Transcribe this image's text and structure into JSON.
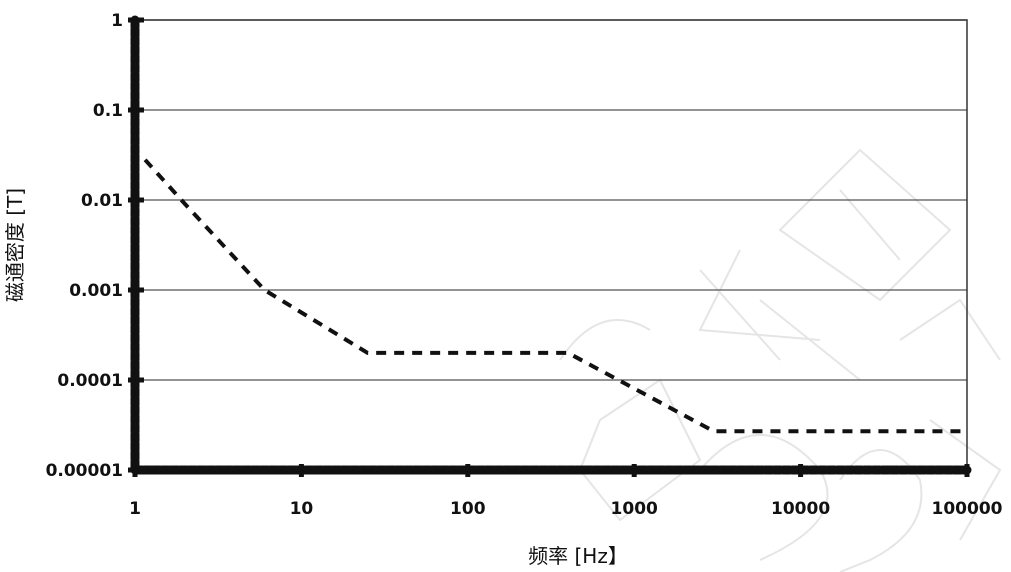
{
  "chart_data": {
    "type": "line",
    "title": "",
    "xlabel": "频率 [Hz】",
    "ylabel": "磁通密度 [T]",
    "x_scale": "log",
    "y_scale": "log",
    "xlim": [
      1,
      100000
    ],
    "ylim": [
      1e-05,
      1
    ],
    "x_ticks": [
      1,
      10,
      100,
      1000,
      10000,
      100000
    ],
    "x_tick_labels": [
      "1",
      "10",
      "100",
      "1000",
      "10000",
      "100000"
    ],
    "y_ticks": [
      1e-05,
      0.0001,
      0.001,
      0.01,
      0.1,
      1
    ],
    "y_tick_labels": [
      "0.00001",
      "0.0001",
      "0.001",
      "0.01",
      "0.1",
      "1"
    ],
    "grid": "horizontal",
    "legend": "none",
    "series": [
      {
        "line_style": "dashed",
        "color": "#111111",
        "x": [
          1.15,
          2,
          6,
          25,
          400,
          3000,
          100000
        ],
        "y": [
          0.028,
          0.009,
          0.001,
          0.0002,
          0.0002,
          2.7e-05,
          2.7e-05
        ]
      }
    ]
  },
  "watermark": {
    "text": "版权所有 2024"
  }
}
